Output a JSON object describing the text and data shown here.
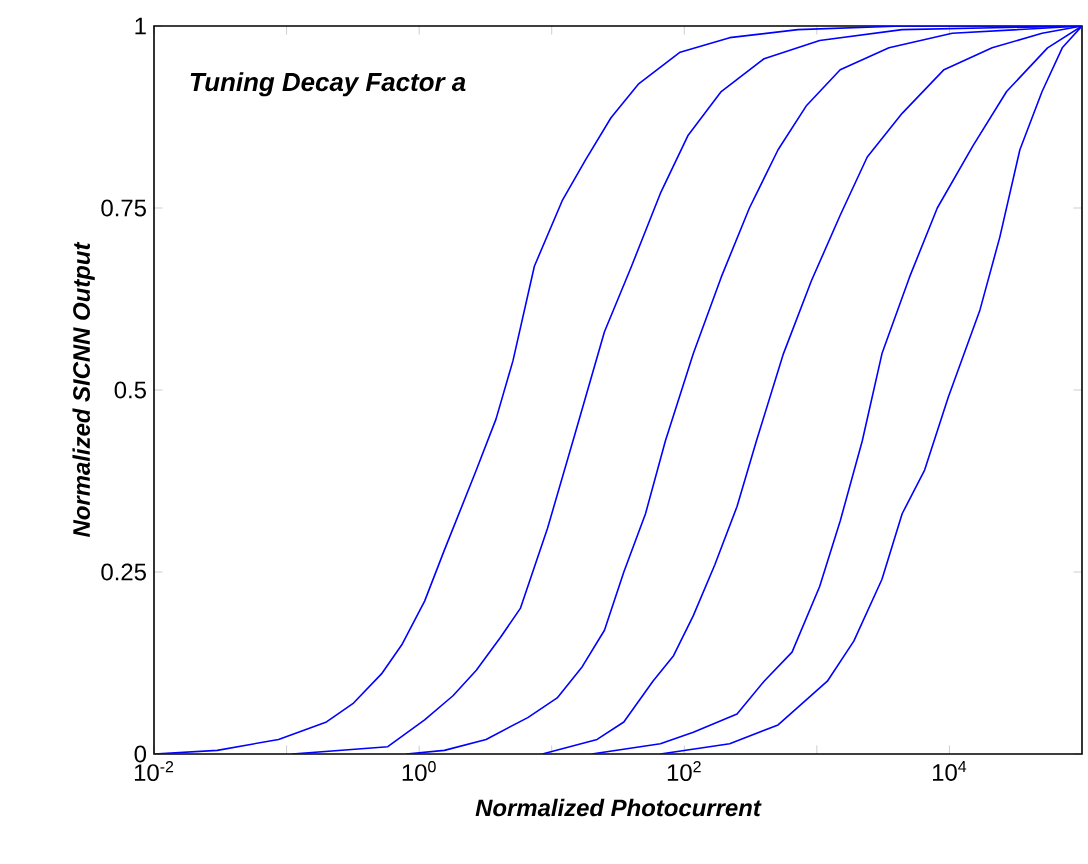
{
  "chart_data": {
    "type": "line",
    "xlabel": "Normalized Photocurrent",
    "ylabel": "Normalized SICNN Output",
    "annotations": [
      "Tuning Decay Factor a"
    ],
    "log": "x",
    "xlim": [
      0.01,
      100000
    ],
    "ylim": [
      0,
      1
    ],
    "xticks": [
      {
        "value": 0.01,
        "label": "10$^{-2}$"
      },
      {
        "value": 0.1,
        "label": null
      },
      {
        "value": 1,
        "label": "10$^{0}$"
      },
      {
        "value": 10,
        "label": null
      },
      {
        "value": 100,
        "label": "10$^{2}$"
      },
      {
        "value": 1000,
        "label": null
      },
      {
        "value": 10000,
        "label": "10$^{4}$"
      }
    ],
    "yticks": [
      0,
      0.25,
      0.5,
      0.75,
      1
    ],
    "series": [
      {
        "color": "#0000ff",
        "x": [
          0.01,
          0.03,
          0.087,
          0.2,
          0.32,
          0.52,
          0.74,
          1.1,
          1.55,
          2.7,
          3.8,
          5.1,
          7.4,
          12,
          18,
          28,
          45,
          93,
          220,
          720,
          4400,
          100000
        ],
        "values": [
          0,
          0.005,
          0.02,
          0.044,
          0.07,
          0.11,
          0.15,
          0.21,
          0.28,
          0.39,
          0.46,
          0.54,
          0.67,
          0.76,
          0.816,
          0.874,
          0.92,
          0.964,
          0.984,
          0.995,
          1,
          1
        ]
      },
      {
        "color": "#0000ff",
        "x": [
          0.11,
          0.58,
          1.1,
          1.8,
          2.7,
          4.1,
          5.8,
          9.3,
          15,
          25,
          40,
          66,
          107,
          190,
          400,
          1050,
          4400,
          100000
        ],
        "values": [
          0,
          0.01,
          0.047,
          0.08,
          0.115,
          0.16,
          0.2,
          0.31,
          0.44,
          0.58,
          0.67,
          0.77,
          0.85,
          0.91,
          0.955,
          0.98,
          0.995,
          1
        ]
      },
      {
        "color": "#0000ff",
        "x": [
          0.8,
          1.55,
          3.2,
          6.6,
          11,
          17,
          25,
          35,
          51,
          72,
          117,
          190,
          310,
          510,
          830,
          1500,
          3500,
          10500,
          100000
        ],
        "values": [
          0,
          0.005,
          0.02,
          0.05,
          0.077,
          0.12,
          0.17,
          0.25,
          0.33,
          0.43,
          0.55,
          0.655,
          0.75,
          0.83,
          0.89,
          0.94,
          0.97,
          0.99,
          1
        ]
      },
      {
        "color": "#0000ff",
        "x": [
          8.5,
          22,
          35,
          58,
          83,
          117,
          170,
          250,
          350,
          560,
          910,
          1500,
          2400,
          4400,
          9100,
          21000,
          50000,
          100000
        ],
        "values": [
          0,
          0.02,
          0.044,
          0.1,
          0.135,
          0.19,
          0.26,
          0.34,
          0.43,
          0.55,
          0.65,
          0.74,
          0.82,
          0.88,
          0.94,
          0.97,
          0.99,
          1
        ]
      },
      {
        "color": "#0000ff",
        "x": [
          20,
          66,
          117,
          250,
          400,
          650,
          1050,
          1500,
          2200,
          3100,
          5000,
          8100,
          15000,
          27000,
          55000,
          100000
        ],
        "values": [
          0,
          0.014,
          0.03,
          0.055,
          0.1,
          0.14,
          0.23,
          0.32,
          0.43,
          0.55,
          0.655,
          0.75,
          0.835,
          0.91,
          0.97,
          1
        ]
      },
      {
        "color": "#0000ff",
        "x": [
          66,
          220,
          510,
          1200,
          1900,
          3100,
          4400,
          6500,
          9800,
          17000,
          24000,
          34000,
          50000,
          71000,
          100000
        ],
        "values": [
          0,
          0.014,
          0.04,
          0.1,
          0.155,
          0.24,
          0.33,
          0.39,
          0.49,
          0.61,
          0.71,
          0.83,
          0.91,
          0.97,
          1
        ]
      }
    ]
  }
}
